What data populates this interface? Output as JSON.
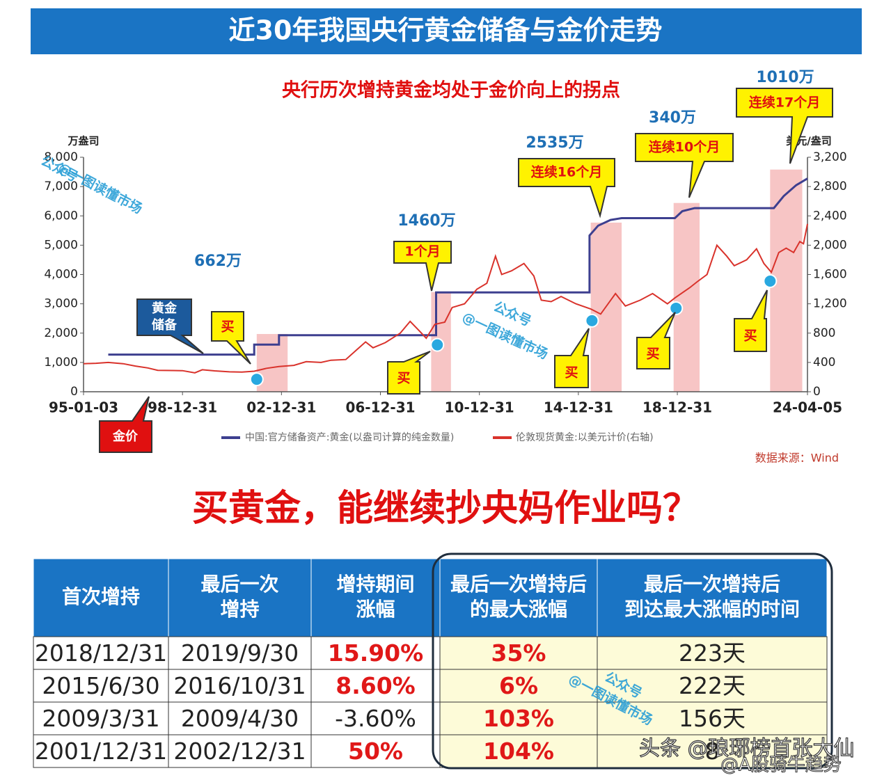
{
  "header": {
    "title": "近30年我国央行黄金储备与金价走势",
    "question": "买黄金，能继续抄央妈作业吗？"
  },
  "chart_data": {
    "type": "line",
    "subtitle": "央行历次增持黄金均处于金价向上的拐点",
    "ylabel": "万盎司",
    "y2label": "美元/盎司",
    "source": "数据来源：Wind",
    "xlim": [
      1995.0,
      2024.26
    ],
    "xticks": [
      {
        "value": 1995.0,
        "label": "95-01-03"
      },
      {
        "value": 1999.0,
        "label": "98-12-31"
      },
      {
        "value": 2003.0,
        "label": "02-12-31"
      },
      {
        "value": 2007.0,
        "label": "06-12-31"
      },
      {
        "value": 2011.0,
        "label": "10-12-31"
      },
      {
        "value": 2015.0,
        "label": "14-12-31"
      },
      {
        "value": 2019.0,
        "label": "18-12-31"
      },
      {
        "value": 2024.26,
        "label": "24-04-05"
      }
    ],
    "ylim": [
      0,
      8000
    ],
    "yticks": [
      0,
      {
        "value": 1000,
        "label": "1,000"
      },
      {
        "value": 2000,
        "label": "2,000"
      },
      {
        "value": 3000,
        "label": "3,000"
      },
      {
        "value": 4000,
        "label": "4,000"
      },
      {
        "value": 5000,
        "label": "5,000"
      },
      {
        "value": 6000,
        "label": "6,000"
      },
      {
        "value": 7000,
        "label": "7,000"
      },
      {
        "value": 8000,
        "label": "8,000"
      }
    ],
    "y2lim": [
      0,
      3200
    ],
    "y2ticks": [
      0,
      400,
      800,
      {
        "value": 1200,
        "label": "1,200"
      },
      {
        "value": 1600,
        "label": "1,600"
      },
      {
        "value": 2000,
        "label": "2,000"
      },
      {
        "value": 2400,
        "label": "2,400"
      },
      {
        "value": 2800,
        "label": "2,800"
      },
      {
        "value": 3200,
        "label": "3,200"
      }
    ],
    "series": [
      {
        "name": "中国:官方储备资产:黄金(以盎司计算的纯金数量)",
        "color": "#3d3f8f",
        "x": [
          1996.0,
          2001.9,
          2001.9,
          2002.9,
          2002.9,
          2009.25,
          2009.25,
          2015.45,
          2015.45,
          2015.8,
          2016.3,
          2016.75,
          2018.9,
          2019.2,
          2019.7,
          2022.9,
          2023.3,
          2023.8,
          2024.26
        ],
        "values": [
          1267,
          1267,
          1608,
          1608,
          1929,
          1929,
          3389,
          3389,
          5332,
          5666,
          5862,
          5924,
          5924,
          6161,
          6264,
          6264,
          6676,
          7046,
          7274
        ]
      },
      {
        "name": "伦敦现货黄金:以美元计价(右轴)",
        "color": "#d9322b",
        "axis": "y2",
        "x": [
          1995.0,
          1995.5,
          1996.0,
          1996.6,
          1997.1,
          1997.6,
          1998.0,
          1998.6,
          1999.0,
          1999.5,
          1999.8,
          2000.3,
          2000.9,
          2001.4,
          2001.9,
          2002.4,
          2002.9,
          2003.5,
          2004.0,
          2004.6,
          2005.0,
          2005.6,
          2006.0,
          2006.4,
          2006.7,
          2007.2,
          2007.8,
          2008.2,
          2008.6,
          2008.85,
          2009.2,
          2009.6,
          2009.9,
          2010.4,
          2010.9,
          2011.3,
          2011.65,
          2011.9,
          2012.3,
          2012.8,
          2013.2,
          2013.5,
          2013.9,
          2014.3,
          2014.9,
          2015.5,
          2015.9,
          2016.5,
          2016.9,
          2017.5,
          2018.0,
          2018.6,
          2018.9,
          2019.5,
          2019.8,
          2020.2,
          2020.6,
          2021.0,
          2021.3,
          2021.8,
          2022.2,
          2022.5,
          2022.8,
          2023.1,
          2023.4,
          2023.7,
          2023.95,
          2024.1,
          2024.26
        ],
        "values": [
          383,
          388,
          400,
          383,
          350,
          325,
          292,
          290,
          288,
          258,
          300,
          285,
          272,
          268,
          280,
          320,
          345,
          360,
          410,
          400,
          430,
          440,
          560,
          680,
          600,
          670,
          800,
          960,
          820,
          730,
          920,
          950,
          1150,
          1200,
          1400,
          1480,
          1850,
          1600,
          1650,
          1750,
          1580,
          1250,
          1230,
          1300,
          1200,
          1130,
          1060,
          1340,
          1170,
          1250,
          1340,
          1200,
          1280,
          1420,
          1500,
          1600,
          2000,
          1850,
          1720,
          1800,
          1950,
          1750,
          1630,
          1900,
          1960,
          1900,
          2050,
          2020,
          2290
        ]
      }
    ],
    "markers": {
      "color": "#29a8e0",
      "axis": "y2",
      "x": [
        2002.0,
        2009.3,
        2015.55,
        2018.95,
        2022.75
      ],
      "values": [
        170,
        640,
        970,
        1140,
        1510
      ]
    },
    "highlights": {
      "color": "#f7c5c5",
      "x0": [
        2002.0,
        2009.05,
        2015.5,
        2018.85,
        2022.75
      ],
      "x1": [
        2003.25,
        2009.85,
        2016.75,
        2019.9,
        2024.05
      ],
      "values": [
        1970,
        3400,
        5770,
        6440,
        7580
      ]
    },
    "annotations": {
      "amounts": [
        "662万",
        "1460万",
        "2535万",
        "340万",
        "1010万"
      ],
      "callouts": [
        "1个月",
        "连续16个月",
        "连续10个月",
        "连续17个月"
      ],
      "buy_labels": [
        "买",
        "买",
        "买",
        "买",
        "买"
      ],
      "reserve_tag": [
        "黄金",
        "储备"
      ],
      "price_tag": "金价",
      "watermark": [
        "公众号",
        "@一图读懂市场"
      ]
    }
  },
  "table": {
    "header": [
      [
        "首次增持"
      ],
      [
        "最后一次",
        "增持"
      ],
      [
        "增持期间",
        "涨幅"
      ],
      [
        "最后一次增持后",
        "的最大涨幅"
      ],
      [
        "最后一次增持后",
        "到达最大涨幅的时间"
      ]
    ],
    "rows": [
      [
        "2018/12/31",
        "2019/9/30",
        "15.90%",
        "35%",
        "223天"
      ],
      [
        "2015/6/30",
        "2016/10/31",
        "8.60%",
        "6%",
        "222天"
      ],
      [
        "2009/3/31",
        "2009/4/30",
        "-3.60%",
        "103%",
        "156天"
      ],
      [
        "2001/12/31",
        "2002/12/31",
        "50%",
        "104%",
        "8"
      ]
    ]
  },
  "footer": [
    "头条 @琅琊榜首张大仙",
    "@A股骑牛趋势"
  ]
}
